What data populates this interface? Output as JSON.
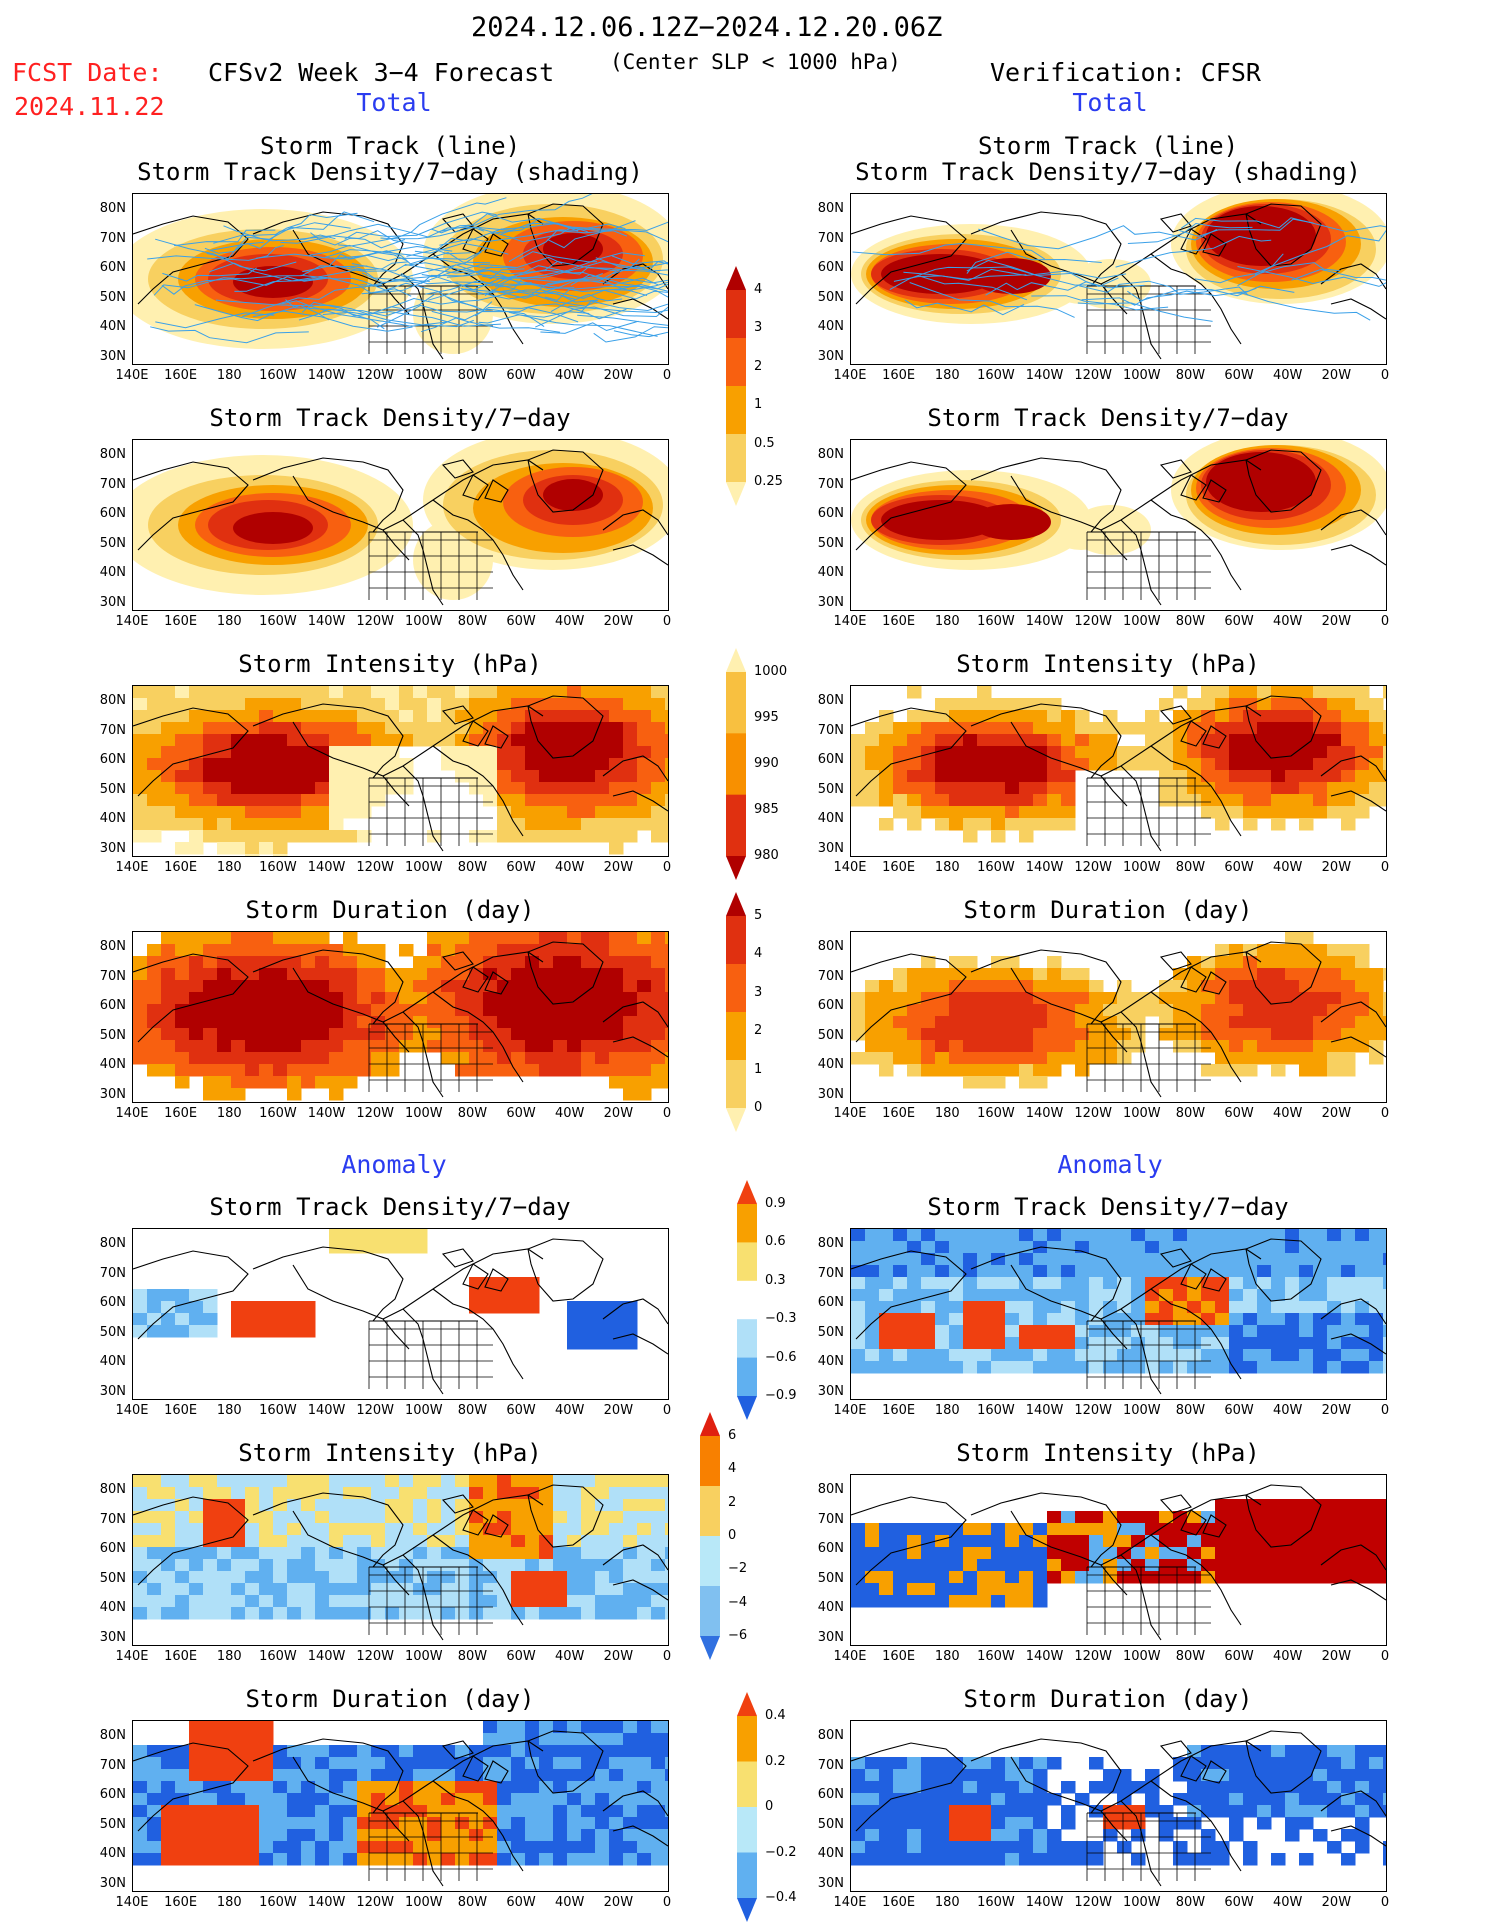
{
  "header": {
    "date_range": "2024.12.06.12Z−2024.12.20.06Z",
    "fcst_label": "FCST Date:",
    "fcst_date": "2024.11.22",
    "forecast_title": "CFSv2 Week 3−4 Forecast",
    "criterion": "(Center SLP < 1000 hPa)",
    "verification": "Verification: CFSR"
  },
  "sections": {
    "total_left": "Total",
    "total_right": "Total",
    "anomaly_left": "Anomaly",
    "anomaly_right": "Anomaly"
  },
  "titles": {
    "track_line": "Storm Track (line)",
    "track_shading": "Storm Track Density/7−day (shading)",
    "density": "Storm Track Density/7−day",
    "intensity": "Storm Intensity (hPa)",
    "duration": "Storm Duration (day)"
  },
  "axes": {
    "lat_labels": [
      "80N",
      "70N",
      "60N",
      "50N",
      "40N",
      "30N"
    ],
    "lon_labels": [
      "140E",
      "160E",
      "180",
      "160W",
      "140W",
      "120W",
      "100W",
      "80W",
      "60W",
      "40W",
      "20W",
      "0"
    ]
  },
  "colorbars": {
    "density_total": {
      "labels": [
        "4",
        "3",
        "2",
        "1",
        "0.5",
        "0.25"
      ],
      "colors": [
        "#b00000",
        "#e03010",
        "#f86010",
        "#f8a000",
        "#f8d060",
        "#fff0b0"
      ]
    },
    "intensity_total": {
      "labels": [
        "1000",
        "995",
        "990",
        "985",
        "980"
      ],
      "colors": [
        "#fff0b0",
        "#f8c040",
        "#f89000",
        "#e03010",
        "#b00000"
      ]
    },
    "duration_total": {
      "labels": [
        "5",
        "4",
        "3",
        "2",
        "1",
        "0"
      ],
      "colors": [
        "#b00000",
        "#e03010",
        "#f86010",
        "#f8a000",
        "#f8d060",
        "#fff0b0"
      ]
    },
    "density_anom": {
      "labels": [
        "0.9",
        "0.6",
        "0.3",
        "−0.3",
        "−0.6",
        "−0.9"
      ],
      "colors": [
        "#f04010",
        "#f8a000",
        "#f8e070",
        "#ffffff",
        "#b0e0f8",
        "#60b0f0",
        "#2060e0"
      ]
    },
    "intensity_anom": {
      "labels": [
        "6",
        "4",
        "2",
        "0",
        "−2",
        "−4",
        "−6"
      ],
      "colors": [
        "#e02010",
        "#f88000",
        "#f8d060",
        "#b8e8f8",
        "#80c0f0",
        "#3070e0"
      ]
    },
    "duration_anom": {
      "labels": [
        "0.4",
        "0.2",
        "0",
        "−0.2",
        "−0.4"
      ],
      "colors": [
        "#f04010",
        "#f8a000",
        "#f8e070",
        "#b8e8f8",
        "#60b0f0",
        "#2060e0"
      ]
    }
  }
}
